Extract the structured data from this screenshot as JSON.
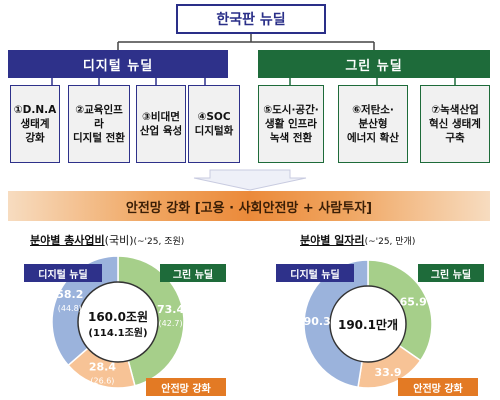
{
  "title": "한국판 뉴딜",
  "digital": {
    "label": "디지털 뉴딜",
    "items": [
      {
        "line1": "①D.N.A",
        "line2": "생태계",
        "line3": "강화"
      },
      {
        "line1": "②교육인프라",
        "line2": "디지털 전환",
        "line3": ""
      },
      {
        "line1": "③비대면",
        "line2": "산업 육성",
        "line3": ""
      },
      {
        "line1": "④SOC",
        "line2": "디지털화",
        "line3": ""
      }
    ]
  },
  "green": {
    "label": "그린 뉴딜",
    "items": [
      {
        "line1": "⑤도시·공간·",
        "line2": "생활 인프라",
        "line3": "녹색 전환"
      },
      {
        "line1": "⑥저탄소·",
        "line2": "분산형",
        "line3": "에너지 확산"
      },
      {
        "line1": "⑦녹색산업",
        "line2": "혁신 생태계",
        "line3": "구축"
      }
    ]
  },
  "safety_net": "안전망 강화 [고용 · 사회안전망 + 사람투자]",
  "colors": {
    "digital": "#2e318a",
    "green": "#1e6b3a",
    "safety": "#e37a24",
    "digital_slice": "#9bb3dc",
    "green_slice": "#a6cf8a",
    "safety_slice": "#f7c396"
  },
  "chart_data": [
    {
      "type": "pie",
      "title": "분야별 총사업비",
      "title_sub": "(국비)",
      "title_note": "(~'25, 조원)",
      "center_label": "160.0조원",
      "center_sub": "(114.1조원)",
      "slices": [
        {
          "name": "디지털 뉴딜",
          "value": 58.2,
          "sub_value": "(44.8)"
        },
        {
          "name": "그린 뉴딜",
          "value": 73.4,
          "sub_value": "(42.7)"
        },
        {
          "name": "안전망 강화",
          "value": 28.4,
          "sub_value": "(26.6)"
        }
      ]
    },
    {
      "type": "pie",
      "title": "분야별 일자리",
      "title_note": "(~'25, 만개)",
      "center_label": "190.1만개",
      "slices": [
        {
          "name": "디지털 뉴딜",
          "value": 90.3
        },
        {
          "name": "그린 뉴딜",
          "value": 65.9
        },
        {
          "name": "안전망 강화",
          "value": 33.9
        }
      ]
    }
  ]
}
